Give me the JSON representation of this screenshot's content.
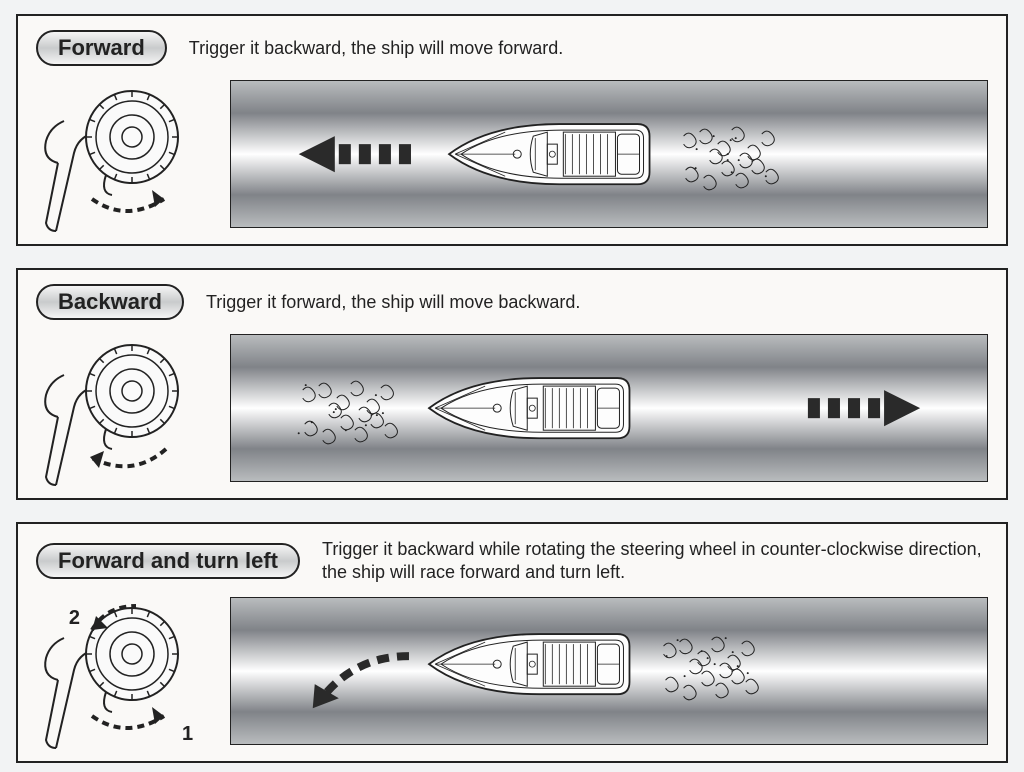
{
  "page": {
    "type": "instruction-manual",
    "background_color": "#f2f3f4",
    "panel_border_color": "#222222",
    "panel_background": "#faf9f7",
    "pill_border_color": "#222222",
    "pill_gradient": [
      "#f5f5f5",
      "#c9cbcc",
      "#f5f5f5"
    ],
    "water_gradient": [
      "#b9bcbe",
      "#808388",
      "#ffffff",
      "#808388",
      "#b9bcbe"
    ],
    "text_color": "#222222",
    "title_fontsize_pt": 17,
    "desc_fontsize_pt": 14
  },
  "panels": [
    {
      "id": "forward",
      "title": "Forward",
      "description": "Trigger it backward, the ship will move forward.",
      "controller": {
        "trigger_arc": "back",
        "steering_arc": false,
        "labels": []
      },
      "diagram": {
        "arrow_direction": "left",
        "arrow_style": "straight",
        "wake_side": "right",
        "boat_orient": "left"
      }
    },
    {
      "id": "backward",
      "title": "Backward",
      "description": "Trigger it forward, the ship will move backward.",
      "controller": {
        "trigger_arc": "forward",
        "steering_arc": false,
        "labels": []
      },
      "diagram": {
        "arrow_direction": "right",
        "arrow_style": "straight",
        "wake_side": "left",
        "boat_orient": "left"
      }
    },
    {
      "id": "fwd-left",
      "title": "Forward and turn left",
      "description": "Trigger it backward while rotating the steering wheel in counter-clockwise direction, the ship will race forward and turn left.",
      "controller": {
        "trigger_arc": "back",
        "steering_arc": true,
        "labels": [
          "1",
          "2"
        ]
      },
      "diagram": {
        "arrow_direction": "left",
        "arrow_style": "curve-down-left",
        "wake_side": "right",
        "boat_orient": "left"
      }
    }
  ]
}
